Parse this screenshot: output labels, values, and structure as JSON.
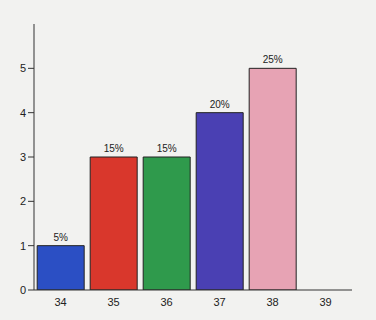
{
  "chart_data": {
    "type": "bar",
    "categories": [
      "34",
      "35",
      "36",
      "37",
      "38",
      "39"
    ],
    "values": [
      1,
      3,
      3,
      4,
      5,
      null
    ],
    "bar_labels": [
      "5%",
      "15%",
      "15%",
      "20%",
      "25%",
      null
    ],
    "colors": [
      "#2b4fc4",
      "#d9372c",
      "#2f9a4c",
      "#4a40b3",
      "#e7a3b4",
      "#888888"
    ],
    "ylim": [
      0,
      6
    ],
    "yticks": [
      0,
      1,
      2,
      3,
      4,
      5
    ],
    "grid": false
  }
}
